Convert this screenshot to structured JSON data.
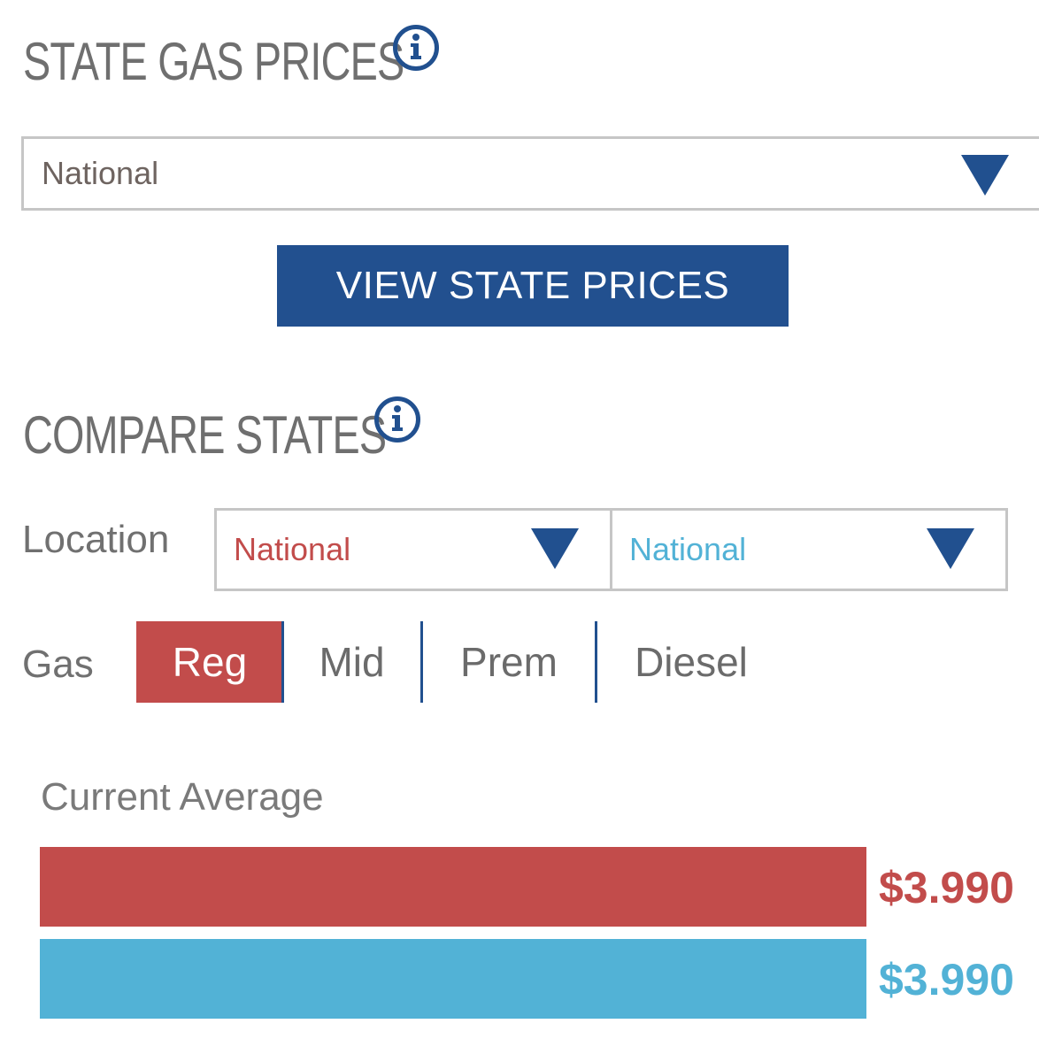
{
  "state_gas_prices": {
    "title": "STATE GAS PRICES",
    "info_icon": "info-circle-icon",
    "dropdown_value": "National",
    "button_label": "VIEW STATE PRICES"
  },
  "compare_states": {
    "title": "COMPARE STATES",
    "info_icon": "info-circle-icon",
    "location_label": "Location",
    "location_1": "National",
    "location_2": "National",
    "gas_label": "Gas",
    "gas_tabs": [
      "Reg",
      "Mid",
      "Prem",
      "Diesel"
    ],
    "active_tab": "Reg"
  },
  "current_average": {
    "label": "Current Average",
    "price_1": "$3.990",
    "price_2": "$3.990",
    "bar_fill_1": 1.0,
    "bar_fill_2": 1.0
  },
  "colors": {
    "accent_blue": "#22508f",
    "location_1_red": "#c24c4b",
    "location_2_cyan": "#52b2d6"
  }
}
